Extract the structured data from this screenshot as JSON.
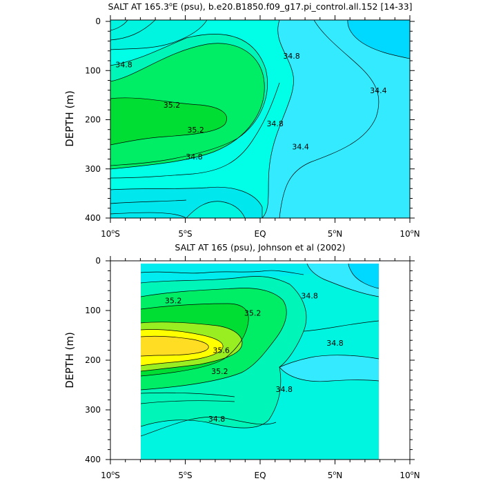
{
  "chart_data": [
    {
      "type": "heatmap",
      "title": "SALT AT 165.3°E (psu), b.e20.B1850.f09_g17.pi_control.all.152 [14-33]",
      "title_parts": {
        "pre": "SALT AT 165.3",
        "sup": "o",
        "post": "E (psu), b.e20.B1850.f09_g17.pi_control.all.152 [14-33]"
      },
      "ylabel": "DEPTH (m)",
      "xlim": [
        -10,
        10
      ],
      "ylim": [
        400,
        0
      ],
      "y_ticks": [
        0,
        100,
        200,
        300,
        400
      ],
      "x_ticks": [
        {
          "value": -10,
          "num": "10",
          "sup": "o",
          "hem": "S"
        },
        {
          "value": -5,
          "num": "5",
          "sup": "o",
          "hem": "S"
        },
        {
          "value": 0,
          "num": "EQ",
          "sup": "",
          "hem": ""
        },
        {
          "value": 5,
          "num": "5",
          "sup": "o",
          "hem": "N"
        },
        {
          "value": 10,
          "num": "10",
          "sup": "o",
          "hem": "N"
        }
      ],
      "contour_labels": [
        {
          "text": "34.8",
          "x": -9.1,
          "y": 88
        },
        {
          "text": "35.2",
          "x": -5.9,
          "y": 170
        },
        {
          "text": "35.2",
          "x": -4.3,
          "y": 220
        },
        {
          "text": "34.8",
          "x": -4.4,
          "y": 275
        },
        {
          "text": "34.8",
          "x": 1.0,
          "y": 208
        },
        {
          "text": "34.4",
          "x": 2.7,
          "y": 255
        },
        {
          "text": "34.8",
          "x": 2.1,
          "y": 70
        },
        {
          "text": "34.4",
          "x": 7.9,
          "y": 140
        }
      ]
    },
    {
      "type": "heatmap",
      "title": "SALT AT 165 (psu), Johnson et al (2002)",
      "ylabel": "DEPTH (m)",
      "xlim": [
        -10,
        10
      ],
      "ylim": [
        400,
        0
      ],
      "data_xrange": [
        -8,
        8
      ],
      "data_yrange": [
        5,
        400
      ],
      "y_ticks": [
        0,
        100,
        200,
        300,
        400
      ],
      "x_ticks": [
        {
          "value": -10,
          "num": "10",
          "sup": "o",
          "hem": "S"
        },
        {
          "value": -5,
          "num": "5",
          "sup": "o",
          "hem": "S"
        },
        {
          "value": 0,
          "num": "EQ",
          "sup": "",
          "hem": ""
        },
        {
          "value": 5,
          "num": "5",
          "sup": "o",
          "hem": "N"
        },
        {
          "value": 10,
          "num": "10",
          "sup": "o",
          "hem": "N"
        }
      ],
      "contour_labels": [
        {
          "text": "35.2",
          "x": -5.8,
          "y": 80
        },
        {
          "text": "35.2",
          "x": -0.5,
          "y": 105
        },
        {
          "text": "34.8",
          "x": 3.3,
          "y": 70
        },
        {
          "text": "35.6",
          "x": -2.6,
          "y": 180
        },
        {
          "text": "35.2",
          "x": -2.7,
          "y": 222
        },
        {
          "text": "34.8",
          "x": 5.0,
          "y": 165
        },
        {
          "text": "34.8",
          "x": 1.6,
          "y": 258
        },
        {
          "text": "34.8",
          "x": -2.9,
          "y": 318
        }
      ]
    }
  ]
}
